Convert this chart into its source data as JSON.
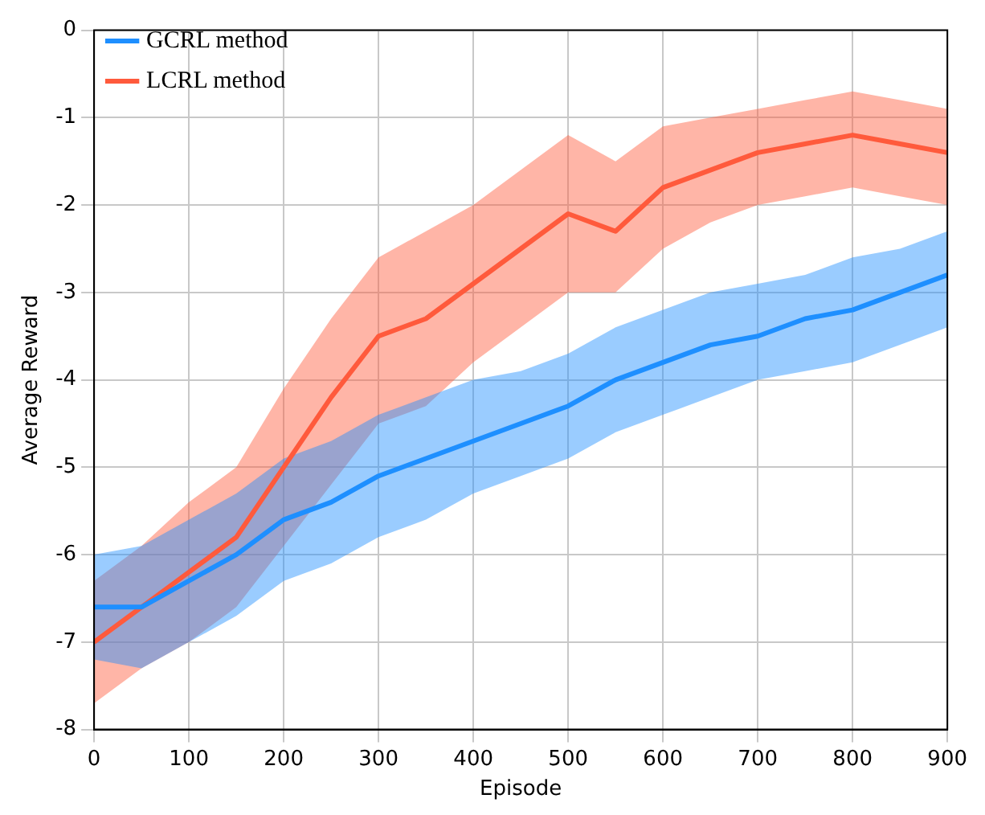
{
  "chart_data": {
    "type": "line",
    "xlabel": "Episode",
    "ylabel": "Average Reward",
    "x": [
      0,
      50,
      100,
      150,
      200,
      250,
      300,
      350,
      400,
      450,
      500,
      550,
      600,
      650,
      700,
      750,
      800,
      850,
      900
    ],
    "series": [
      {
        "name": "GCRL method",
        "color": "#1e8fff",
        "values": [
          -6.6,
          -6.6,
          -6.3,
          -6.0,
          -5.6,
          -5.4,
          -5.1,
          -4.9,
          -4.7,
          -4.5,
          -4.3,
          -4.0,
          -3.8,
          -3.6,
          -3.5,
          -3.3,
          -3.2,
          -3.0,
          -2.8
        ],
        "lower": [
          -7.2,
          -7.3,
          -7.0,
          -6.7,
          -6.3,
          -6.1,
          -5.8,
          -5.6,
          -5.3,
          -5.1,
          -4.9,
          -4.6,
          -4.4,
          -4.2,
          -4.0,
          -3.9,
          -3.8,
          -3.6,
          -3.4
        ],
        "upper": [
          -6.0,
          -5.9,
          -5.6,
          -5.3,
          -4.9,
          -4.7,
          -4.4,
          -4.2,
          -4.0,
          -3.9,
          -3.7,
          -3.4,
          -3.2,
          -3.0,
          -2.9,
          -2.8,
          -2.6,
          -2.5,
          -2.3
        ]
      },
      {
        "name": "LCRL method",
        "color": "#ff5a3c",
        "values": [
          -7.0,
          -6.6,
          -6.2,
          -5.8,
          -5.0,
          -4.2,
          -3.5,
          -3.3,
          -2.9,
          -2.5,
          -2.1,
          -2.3,
          -1.8,
          -1.6,
          -1.4,
          -1.3,
          -1.2,
          -1.3,
          -1.4
        ],
        "lower": [
          -7.7,
          -7.3,
          -7.0,
          -6.6,
          -5.9,
          -5.2,
          -4.5,
          -4.3,
          -3.8,
          -3.4,
          -3.0,
          -3.0,
          -2.5,
          -2.2,
          -2.0,
          -1.9,
          -1.8,
          -1.9,
          -2.0
        ],
        "upper": [
          -6.3,
          -5.9,
          -5.4,
          -5.0,
          -4.1,
          -3.3,
          -2.6,
          -2.3,
          -2.0,
          -1.6,
          -1.2,
          -1.5,
          -1.1,
          -1.0,
          -0.9,
          -0.8,
          -0.7,
          -0.8,
          -0.9
        ]
      }
    ],
    "xlim": [
      0,
      900
    ],
    "xticks": [
      0,
      100,
      200,
      300,
      400,
      500,
      600,
      700,
      800,
      900
    ],
    "ylim": [
      -8,
      0
    ],
    "yticks": [
      -8,
      -7,
      -6,
      -5,
      -4,
      -3,
      -2,
      -1,
      0
    ],
    "grid": true,
    "legend": "top left",
    "marker": "none",
    "line_style": "solid"
  }
}
